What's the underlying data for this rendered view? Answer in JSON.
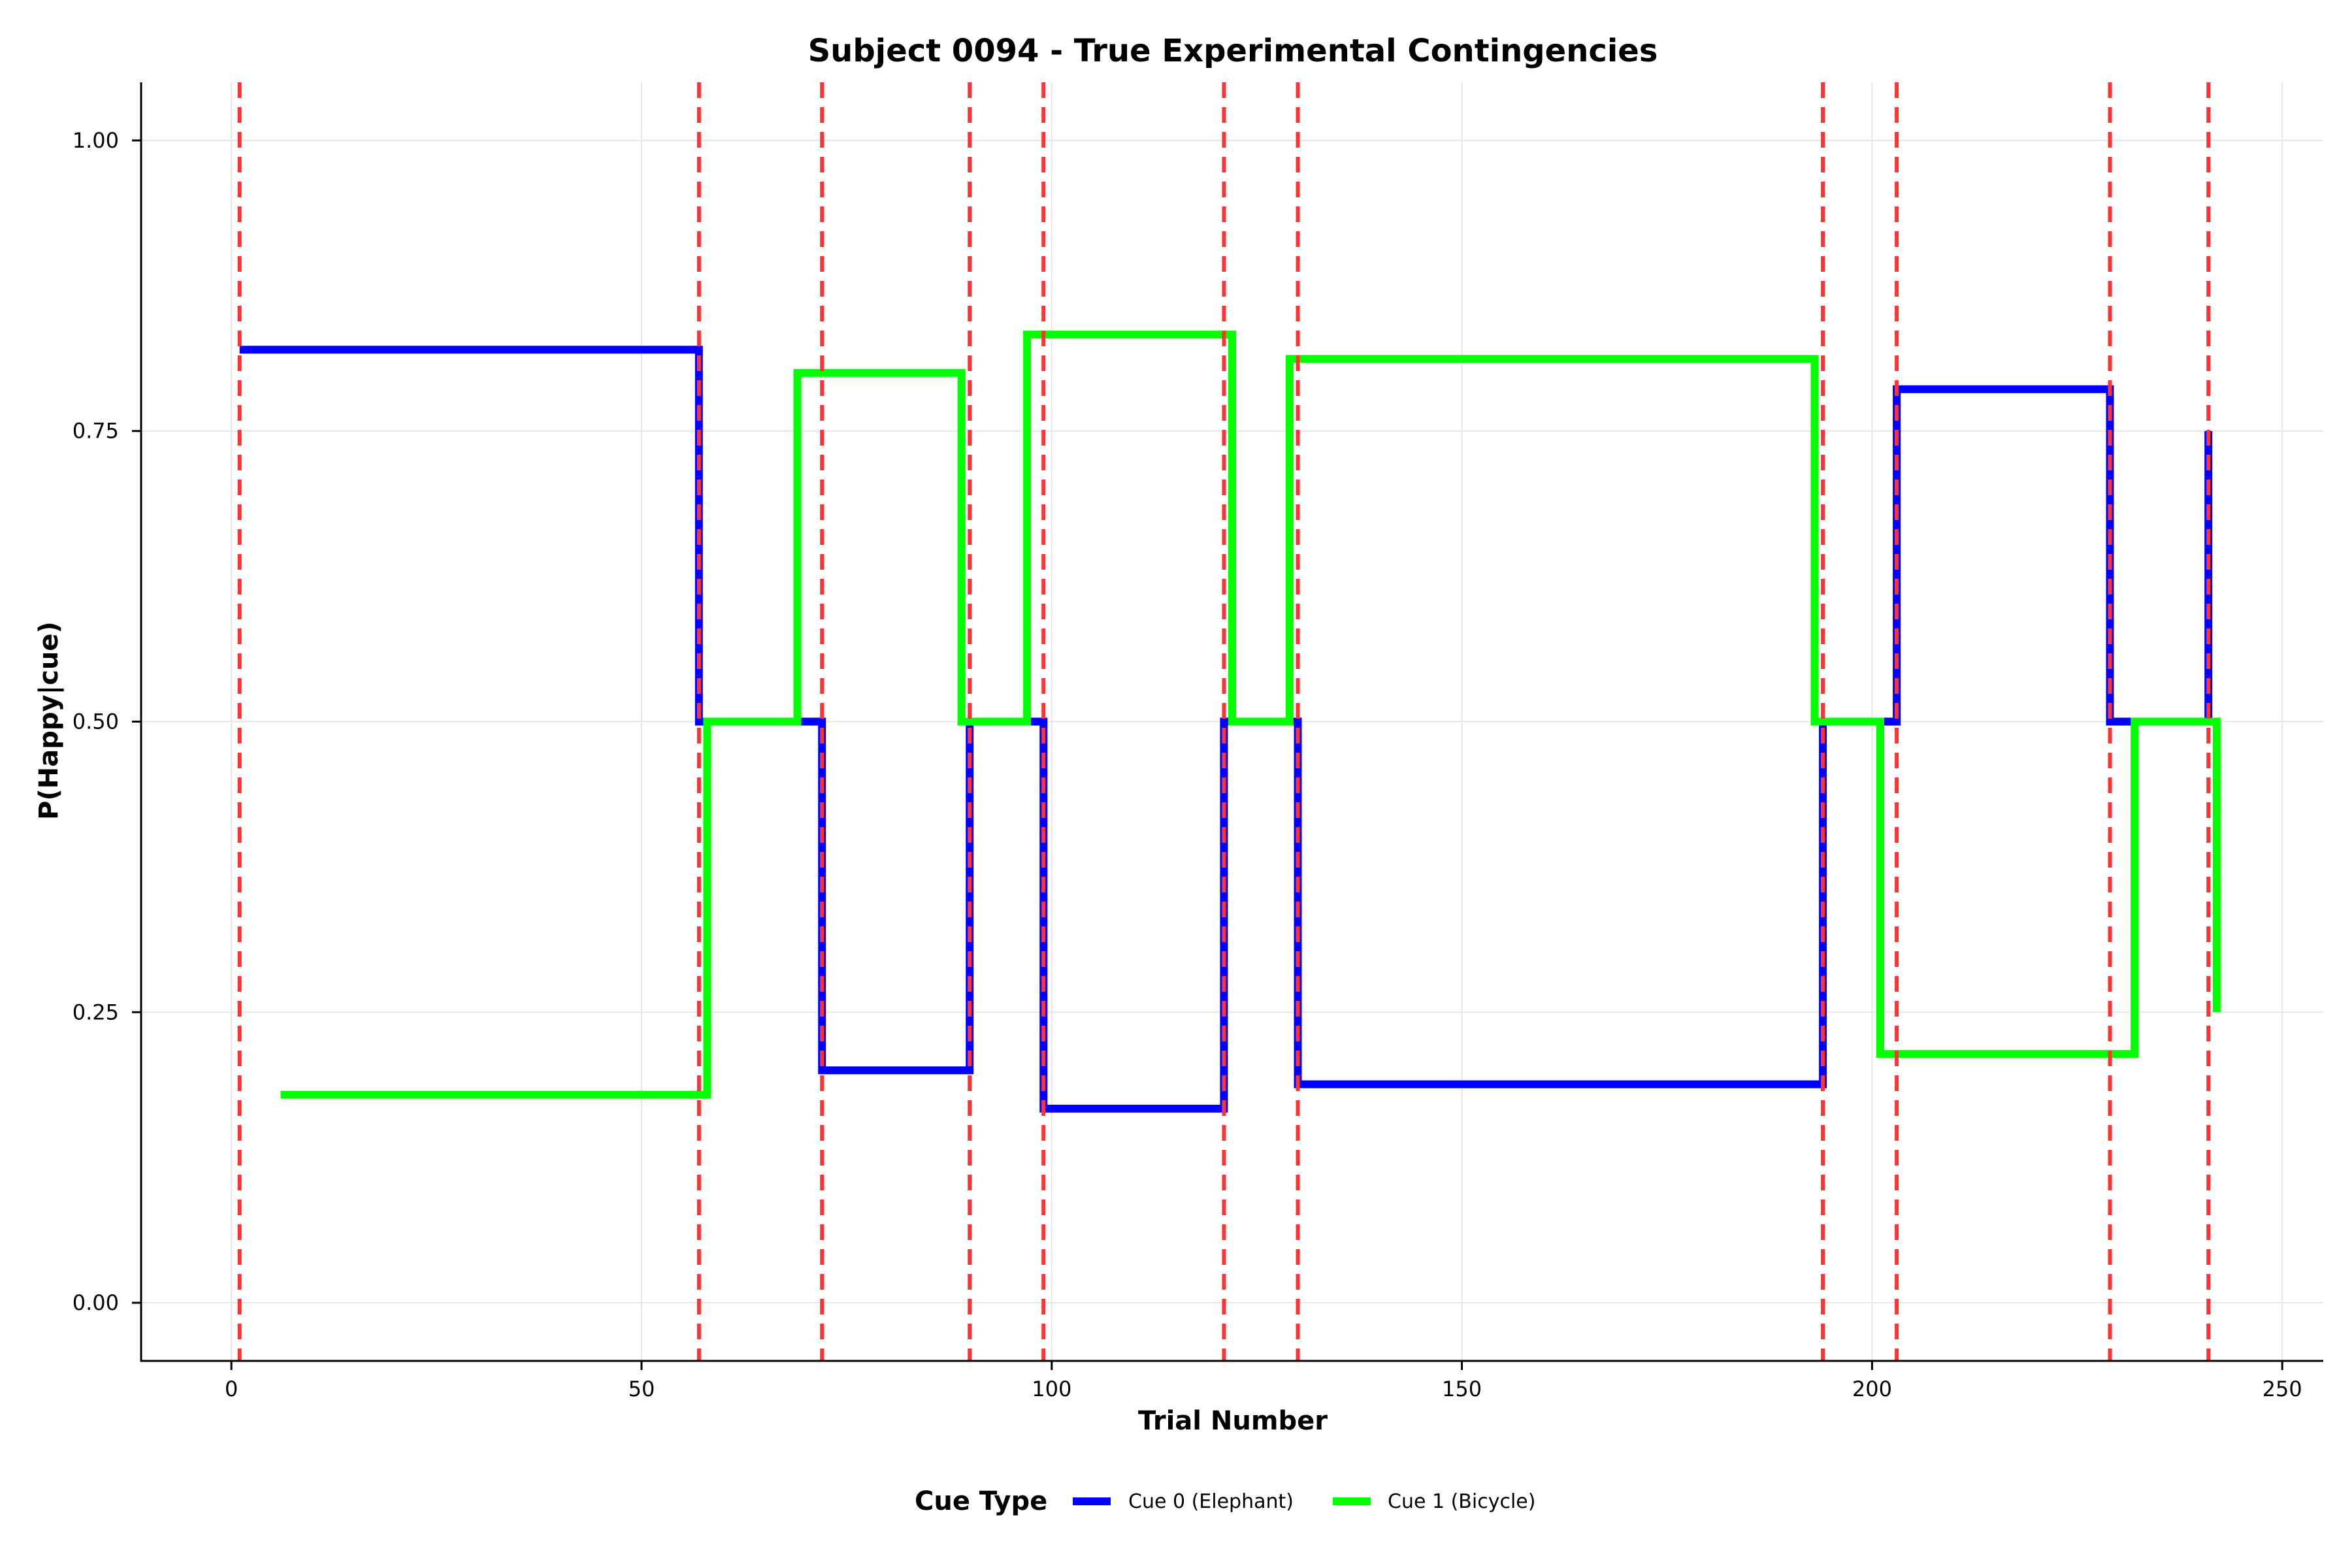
{
  "chart_data": {
    "type": "line",
    "step": true,
    "title": "Subject 0094 - True Experimental Contingencies",
    "xlabel": "Trial Number",
    "ylabel": "P(Happy|cue)",
    "xlim": [
      -11,
      255
    ],
    "ylim": [
      -0.05,
      1.05
    ],
    "xticks": [
      0,
      50,
      100,
      150,
      200,
      250
    ],
    "yticks": [
      0.0,
      0.25,
      0.5,
      0.75,
      1.0
    ],
    "xtick_labels": [
      "0",
      "50",
      "100",
      "150",
      "200",
      "250"
    ],
    "ytick_labels": [
      "0.00",
      "0.25",
      "0.50",
      "0.75",
      "1.00"
    ],
    "grid": true,
    "legend": {
      "title": "Cue Type",
      "placement": "bottom-center",
      "entries": [
        "Cue 0 (Elephant)",
        "Cue 1 (Bicycle)"
      ]
    },
    "colors": {
      "cue0": "#0000ff",
      "cue1": "#00ff00",
      "changepoint": "#ff3333",
      "grid": "#e6e6e6"
    },
    "series": [
      {
        "name": "Cue 0 (Elephant)",
        "points": [
          [
            1,
            0.82
          ],
          [
            57,
            0.82
          ],
          [
            57,
            0.5
          ],
          [
            72,
            0.5
          ],
          [
            72,
            0.2
          ],
          [
            90,
            0.2
          ],
          [
            90,
            0.5
          ],
          [
            99,
            0.5
          ],
          [
            99,
            0.167
          ],
          [
            121,
            0.167
          ],
          [
            121,
            0.5
          ],
          [
            130,
            0.5
          ],
          [
            130,
            0.188
          ],
          [
            194,
            0.188
          ],
          [
            194,
            0.5
          ],
          [
            203,
            0.5
          ],
          [
            203,
            0.786
          ],
          [
            229,
            0.786
          ],
          [
            229,
            0.5
          ],
          [
            241,
            0.5
          ],
          [
            241,
            0.75
          ]
        ]
      },
      {
        "name": "Cue 1 (Bicycle)",
        "points": [
          [
            6,
            0.179
          ],
          [
            58,
            0.179
          ],
          [
            58,
            0.5
          ],
          [
            69,
            0.5
          ],
          [
            69,
            0.8
          ],
          [
            89,
            0.8
          ],
          [
            89,
            0.5
          ],
          [
            97,
            0.5
          ],
          [
            97,
            0.833
          ],
          [
            122,
            0.833
          ],
          [
            122,
            0.5
          ],
          [
            129,
            0.5
          ],
          [
            129,
            0.812
          ],
          [
            193,
            0.812
          ],
          [
            193,
            0.5
          ],
          [
            201,
            0.5
          ],
          [
            201,
            0.214
          ],
          [
            232,
            0.214
          ],
          [
            232,
            0.5
          ],
          [
            242,
            0.5
          ],
          [
            242,
            0.25
          ]
        ]
      }
    ],
    "changepoints": [
      1,
      57,
      72,
      90,
      99,
      121,
      130,
      194,
      203,
      229,
      241
    ]
  }
}
